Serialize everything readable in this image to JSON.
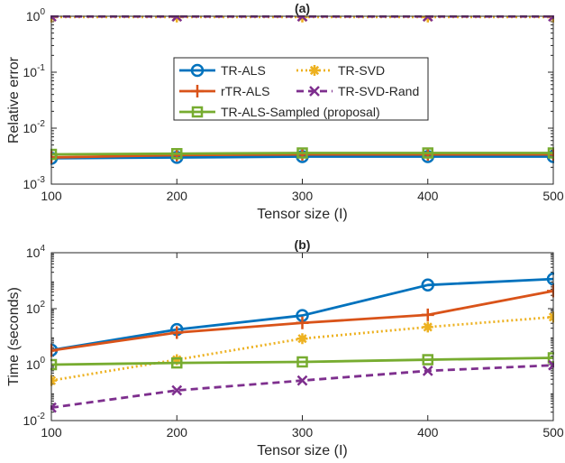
{
  "chart_data": [
    {
      "type": "line",
      "title": "(a)",
      "xlabel": "Tensor size (I)",
      "ylabel": "Relative error",
      "yscale": "log",
      "xlim": [
        100,
        500
      ],
      "ylim": [
        0.001,
        1
      ],
      "x": [
        100,
        200,
        300,
        400,
        500
      ],
      "x_ticks": [
        100,
        200,
        300,
        400,
        500
      ],
      "x_tick_labels": [
        "100",
        "200",
        "300",
        "400",
        "500"
      ],
      "y_ticks": [
        0.001,
        0.01,
        0.1,
        1
      ],
      "y_tick_labels": [
        {
          "base": "10",
          "exp": "-3"
        },
        {
          "base": "10",
          "exp": "-2"
        },
        {
          "base": "10",
          "exp": "-1"
        },
        {
          "base": "10",
          "exp": "0"
        }
      ],
      "grid": false,
      "legend_position": "center",
      "series": [
        {
          "name": "TR-ALS",
          "values": [
            0.0029,
            0.003,
            0.0031,
            0.0031,
            0.0031
          ],
          "color": "#0072BD",
          "marker": "circle",
          "dash": "solid"
        },
        {
          "name": "TR-SVD",
          "values": [
            0.97,
            0.97,
            0.97,
            0.97,
            0.97
          ],
          "color": "#EDB120",
          "marker": "asterisk",
          "dash": "dotted"
        },
        {
          "name": "rTR-ALS",
          "values": [
            0.003,
            0.0033,
            0.0034,
            0.0034,
            0.0034
          ],
          "color": "#D95319",
          "marker": "plus",
          "dash": "solid"
        },
        {
          "name": "TR-SVD-Rand",
          "values": [
            0.99,
            0.99,
            0.99,
            0.99,
            0.99
          ],
          "color": "#7E2F8E",
          "marker": "x",
          "dash": "dashed"
        },
        {
          "name": "TR-ALS-Sampled (proposal)",
          "values": [
            0.0034,
            0.0035,
            0.0036,
            0.0036,
            0.0036
          ],
          "color": "#77AC30",
          "marker": "square",
          "dash": "solid"
        }
      ]
    },
    {
      "type": "line",
      "title": "(b)",
      "xlabel": "Tensor size (I)",
      "ylabel": "Time (seconds)",
      "yscale": "log",
      "xlim": [
        100,
        500
      ],
      "ylim": [
        0.01,
        10000
      ],
      "x": [
        100,
        200,
        300,
        400,
        500
      ],
      "x_ticks": [
        100,
        200,
        300,
        400,
        500
      ],
      "x_tick_labels": [
        "100",
        "200",
        "300",
        "400",
        "500"
      ],
      "y_ticks": [
        0.01,
        1,
        100,
        10000
      ],
      "y_tick_labels": [
        {
          "base": "10",
          "exp": "-2"
        },
        {
          "base": "10",
          "exp": "0"
        },
        {
          "base": "10",
          "exp": "2"
        },
        {
          "base": "10",
          "exp": "4"
        }
      ],
      "grid": false,
      "series": [
        {
          "name": "TR-ALS",
          "values": [
            3.3,
            18,
            57,
            700,
            1150
          ],
          "color": "#0072BD",
          "marker": "circle",
          "dash": "solid"
        },
        {
          "name": "rTR-ALS",
          "values": [
            3.2,
            14,
            31,
            60,
            430
          ],
          "color": "#D95319",
          "marker": "plus",
          "dash": "solid"
        },
        {
          "name": "TR-SVD",
          "values": [
            0.27,
            1.5,
            8.5,
            22,
            50
          ],
          "color": "#EDB120",
          "marker": "asterisk",
          "dash": "dotted"
        },
        {
          "name": "TR-ALS-Sampled (proposal)",
          "values": [
            1.0,
            1.15,
            1.25,
            1.5,
            1.75
          ],
          "color": "#77AC30",
          "marker": "square",
          "dash": "solid"
        },
        {
          "name": "TR-SVD-Rand",
          "values": [
            0.029,
            0.12,
            0.27,
            0.6,
            0.95
          ],
          "color": "#7E2F8E",
          "marker": "x",
          "dash": "dashed"
        }
      ]
    }
  ]
}
